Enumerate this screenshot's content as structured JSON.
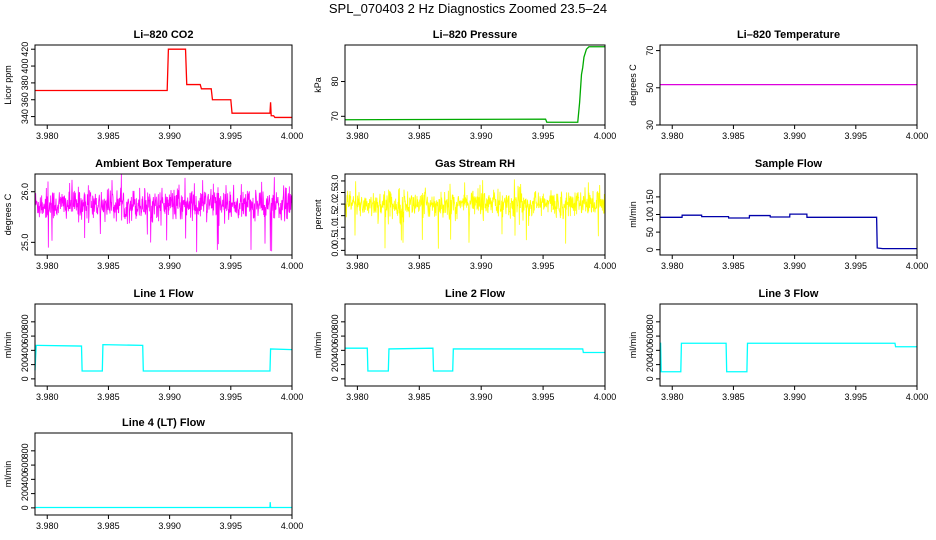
{
  "page": {
    "title": "SPL_070403  2 Hz Diagnostics Zoomed 23.5–24"
  },
  "chart_data": [
    {
      "type": "line",
      "title": "Li–820 CO2",
      "xlabel": "",
      "ylabel": "Licor ppm",
      "xlim": [
        3.979,
        4.0
      ],
      "ylim": [
        330,
        425
      ],
      "xticks": [
        3.98,
        3.985,
        3.99,
        3.995,
        4.0
      ],
      "xtick_labels": [
        "3.980",
        "3.985",
        "3.990",
        "3.995",
        "4.000"
      ],
      "yticks": [
        340,
        360,
        380,
        400,
        420
      ],
      "ytick_labels": [
        "340",
        "360",
        "380",
        "400",
        "420"
      ],
      "series": [
        {
          "color": "#ff0000",
          "x": [
            3.979,
            3.9898,
            3.9899,
            3.9913,
            3.9914,
            3.9925,
            3.9926,
            3.9934,
            3.9935,
            3.995,
            3.9951,
            3.9982,
            3.99825,
            3.9983,
            3.9985,
            3.9986,
            4.0
          ],
          "y": [
            371,
            371,
            420,
            420,
            378,
            378,
            373,
            373,
            360,
            360,
            344,
            344,
            357,
            341,
            341,
            339,
            339
          ]
        }
      ]
    },
    {
      "type": "line",
      "title": "Li–820 Pressure",
      "xlabel": "",
      "ylabel": "kPa",
      "xlim": [
        3.979,
        4.0
      ],
      "ylim": [
        67.5,
        90.5
      ],
      "xticks": [
        3.98,
        3.985,
        3.99,
        3.995,
        4.0
      ],
      "xtick_labels": [
        "3.980",
        "3.985",
        "3.990",
        "3.995",
        "4.000"
      ],
      "yticks": [
        70,
        80
      ],
      "ytick_labels": [
        "70",
        "80"
      ],
      "series": [
        {
          "color": "#00aa00",
          "x": [
            3.979,
            3.9952,
            3.9953,
            3.9978,
            3.99795,
            3.9981,
            3.9982,
            3.9983,
            3.9985,
            3.9987,
            4.0
          ],
          "y": [
            69,
            69.2,
            68.3,
            68.3,
            74,
            82,
            84,
            87,
            89.3,
            90,
            90
          ]
        }
      ]
    },
    {
      "type": "line",
      "title": "Li–820 Temperature",
      "xlabel": "",
      "ylabel": "degrees C",
      "xlim": [
        3.979,
        4.0
      ],
      "ylim": [
        30,
        73
      ],
      "xticks": [
        3.98,
        3.985,
        3.99,
        3.995,
        4.0
      ],
      "xtick_labels": [
        "3.980",
        "3.985",
        "3.990",
        "3.995",
        "4.000"
      ],
      "yticks": [
        30,
        50,
        70
      ],
      "ytick_labels": [
        "30",
        "50",
        "70"
      ],
      "series": [
        {
          "color": "#dd00dd",
          "x": [
            3.979,
            4.0
          ],
          "y": [
            51.7,
            51.7
          ]
        }
      ]
    },
    {
      "type": "line",
      "title": "Ambient Box Temperature",
      "xlabel": "",
      "ylabel": "degrees C",
      "xlim": [
        3.979,
        4.0
      ],
      "ylim": [
        24.75,
        26.35
      ],
      "xticks": [
        3.98,
        3.985,
        3.99,
        3.995,
        4.0
      ],
      "xtick_labels": [
        "3.980",
        "3.985",
        "3.990",
        "3.995",
        "4.000"
      ],
      "yticks": [
        25.0,
        26.0
      ],
      "ytick_labels": [
        "25.0",
        "26.0"
      ],
      "series": [
        {
          "color": "#ff00ff",
          "noise": {
            "mean": 25.75,
            "sd": 0.16,
            "spike_low": 24.8,
            "spike_high": 26.3
          },
          "x": [
            3.979,
            4.0
          ]
        }
      ]
    },
    {
      "type": "line",
      "title": "Gas Stream RH",
      "xlabel": "",
      "ylabel": "percent",
      "xlim": [
        3.979,
        4.0
      ],
      "ylim": [
        -0.2,
        3.3
      ],
      "xticks": [
        3.98,
        3.985,
        3.99,
        3.995,
        4.0
      ],
      "xtick_labels": [
        "3.980",
        "3.985",
        "3.990",
        "3.995",
        "4.000"
      ],
      "yticks": [
        0.0,
        0.5,
        1.0,
        1.5,
        2.0,
        2.5,
        3.0
      ],
      "ytick_labels": [
        "0.0",
        "0.5",
        "1.0",
        "1.5",
        "2.0",
        "2.5",
        "3.0"
      ],
      "series": [
        {
          "color": "#ffff00",
          "noise": {
            "mean": 2.0,
            "sd": 0.3,
            "spike_low": -0.1,
            "spike_high": 3.1
          },
          "x": [
            3.979,
            4.0
          ]
        }
      ]
    },
    {
      "type": "line",
      "title": "Sample Flow",
      "xlabel": "",
      "ylabel": "ml/min",
      "xlim": [
        3.979,
        4.0
      ],
      "ylim": [
        -15,
        215
      ],
      "xticks": [
        3.98,
        3.985,
        3.99,
        3.995,
        4.0
      ],
      "xtick_labels": [
        "3.980",
        "3.985",
        "3.990",
        "3.995",
        "4.000"
      ],
      "yticks": [
        0,
        50,
        100,
        150
      ],
      "ytick_labels": [
        "0",
        "50",
        "100",
        "150"
      ],
      "series": [
        {
          "color": "#0000aa",
          "x": [
            3.979,
            3.9808,
            3.98081,
            3.9824,
            3.98241,
            3.9846,
            3.98461,
            3.9863,
            3.98631,
            3.988,
            3.98801,
            3.9896,
            3.98961,
            3.991,
            3.99101,
            3.9967,
            3.99675,
            3.9972,
            4.0
          ],
          "y": [
            92,
            92,
            98,
            98,
            94,
            94,
            90,
            90,
            97,
            97,
            93,
            93,
            101,
            101,
            92,
            92,
            5,
            3,
            3
          ]
        }
      ]
    },
    {
      "type": "line",
      "title": "Line 1 Flow",
      "xlabel": "",
      "ylabel": "ml/min",
      "xlim": [
        3.979,
        4.0
      ],
      "ylim": [
        -100,
        1050
      ],
      "xticks": [
        3.98,
        3.985,
        3.99,
        3.995,
        4.0
      ],
      "xtick_labels": [
        "3.980",
        "3.985",
        "3.990",
        "3.995",
        "4.000"
      ],
      "yticks": [
        0,
        200,
        400,
        600,
        800
      ],
      "ytick_labels": [
        "0",
        "200",
        "400",
        "600",
        "800"
      ],
      "series": [
        {
          "color": "#00ffff",
          "x": [
            3.979,
            3.9791,
            3.9792,
            3.9828,
            3.98285,
            3.9845,
            3.98455,
            3.9878,
            3.98785,
            3.9982,
            3.99825,
            4.0
          ],
          "y": [
            120,
            470,
            470,
            460,
            110,
            110,
            480,
            470,
            110,
            110,
            420,
            410
          ]
        }
      ]
    },
    {
      "type": "line",
      "title": "Line 2 Flow",
      "xlabel": "",
      "ylabel": "ml/min",
      "xlim": [
        3.979,
        4.0
      ],
      "ylim": [
        -100,
        1050
      ],
      "xticks": [
        3.98,
        3.985,
        3.99,
        3.995,
        4.0
      ],
      "xtick_labels": [
        "3.980",
        "3.985",
        "3.990",
        "3.995",
        "4.000"
      ],
      "yticks": [
        0,
        200,
        400,
        600,
        800
      ],
      "ytick_labels": [
        "0",
        "200",
        "400",
        "600",
        "800"
      ],
      "series": [
        {
          "color": "#00ffff",
          "x": [
            3.979,
            3.9808,
            3.98085,
            3.9825,
            3.98255,
            3.9861,
            3.98615,
            3.9877,
            3.98775,
            3.9982,
            3.99825,
            4.0
          ],
          "y": [
            430,
            430,
            110,
            110,
            420,
            430,
            110,
            110,
            420,
            420,
            370,
            370
          ]
        }
      ]
    },
    {
      "type": "line",
      "title": "Line 3 Flow",
      "xlabel": "",
      "ylabel": "ml/min",
      "xlim": [
        3.979,
        4.0
      ],
      "ylim": [
        -100,
        1050
      ],
      "xticks": [
        3.98,
        3.985,
        3.99,
        3.995,
        4.0
      ],
      "xtick_labels": [
        "3.980",
        "3.985",
        "3.990",
        "3.995",
        "4.000"
      ],
      "yticks": [
        0,
        200,
        400,
        600,
        800
      ],
      "ytick_labels": [
        "0",
        "200",
        "400",
        "600",
        "800"
      ],
      "series": [
        {
          "color": "#00ffff",
          "x": [
            3.979,
            3.97905,
            3.9791,
            3.9807,
            3.98075,
            3.9844,
            3.98445,
            3.9861,
            3.98615,
            3.9982,
            3.99825,
            4.0
          ],
          "y": [
            500,
            500,
            100,
            100,
            500,
            500,
            100,
            100,
            500,
            500,
            450,
            450
          ]
        }
      ]
    },
    {
      "type": "line",
      "title": "Line 4 (LT) Flow",
      "xlabel": "",
      "ylabel": "ml/min",
      "xlim": [
        3.979,
        4.0
      ],
      "ylim": [
        -100,
        1050
      ],
      "xticks": [
        3.98,
        3.985,
        3.99,
        3.995,
        4.0
      ],
      "xtick_labels": [
        "3.980",
        "3.985",
        "3.990",
        "3.995",
        "4.000"
      ],
      "yticks": [
        0,
        200,
        400,
        600,
        800
      ],
      "ytick_labels": [
        "0",
        "200",
        "400",
        "600",
        "800"
      ],
      "series": [
        {
          "color": "#00ffff",
          "x": [
            3.979,
            3.9982,
            3.99822,
            3.99825,
            3.9983,
            4.0
          ],
          "y": [
            5,
            5,
            80,
            5,
            5,
            5
          ]
        }
      ]
    }
  ]
}
